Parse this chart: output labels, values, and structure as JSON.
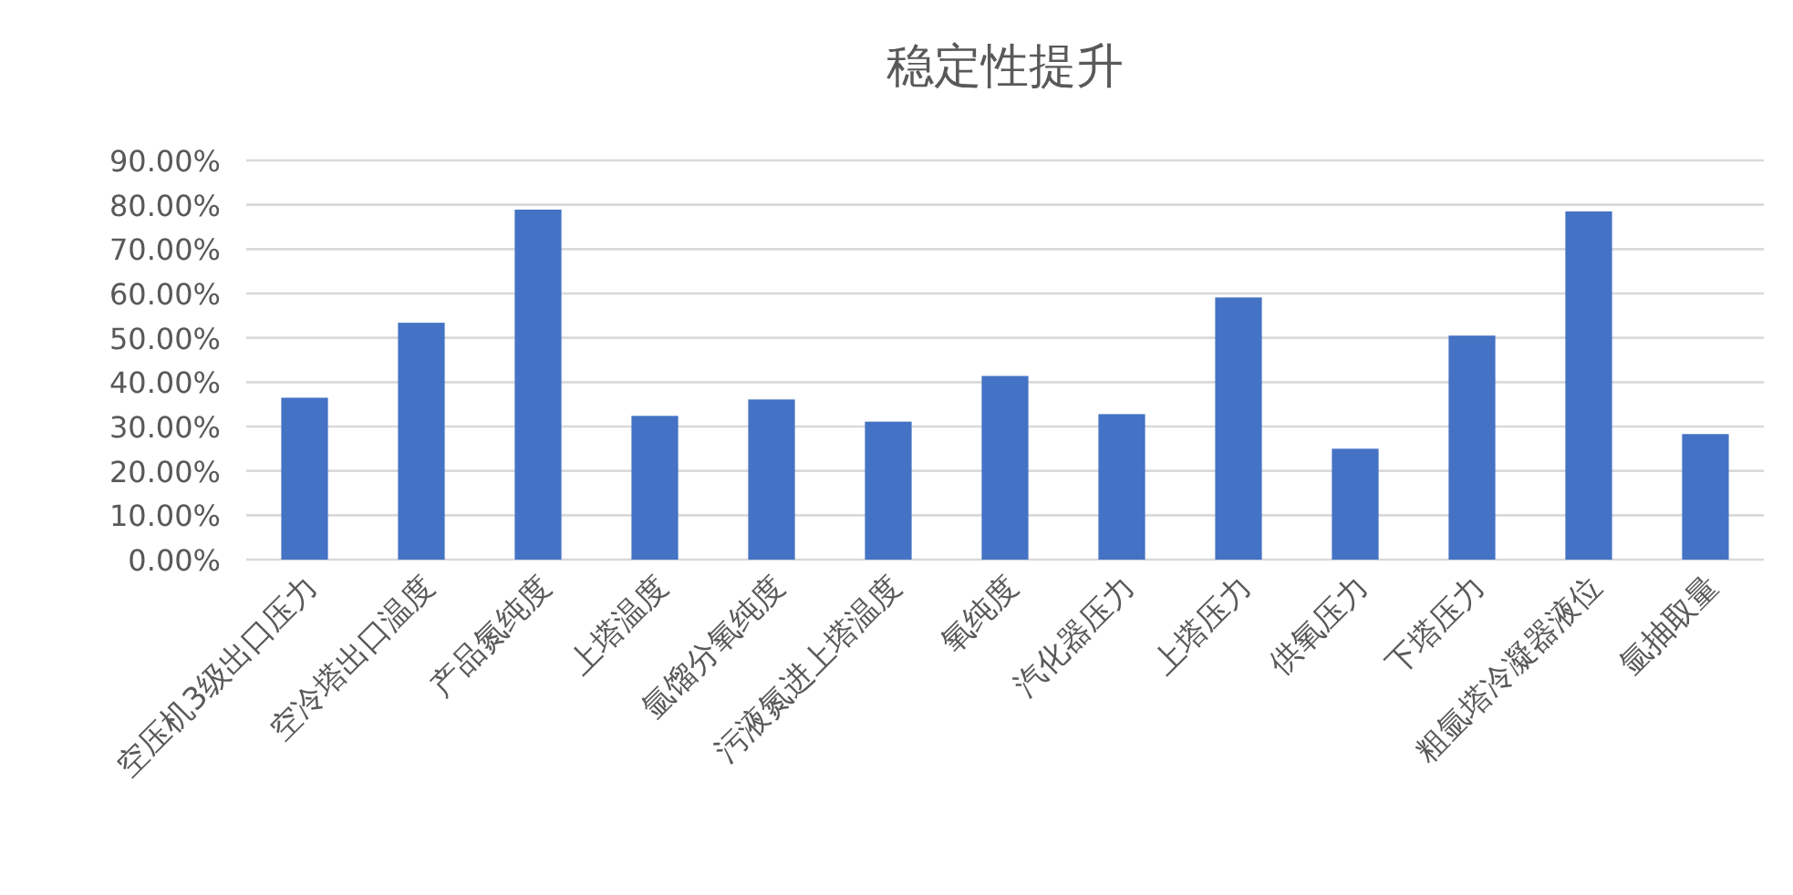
{
  "chart_data": {
    "type": "bar",
    "title": "稳定性提升",
    "categories": [
      "空压机3级出口压力",
      "空冷塔出口温度",
      "产品氮纯度",
      "上塔温度",
      "氩馏分氧纯度",
      "污液氮进上塔温度",
      "氧纯度",
      "汽化器压力",
      "上塔压力",
      "供氧压力",
      "下塔压力",
      "粗氩塔冷凝器液位",
      "氩抽取量"
    ],
    "values": [
      36.5,
      53.4,
      78.9,
      32.4,
      36.1,
      31.1,
      41.4,
      32.8,
      59.1,
      25.0,
      50.5,
      78.5,
      28.3
    ],
    "color": "#4472c4",
    "ylim": [
      0,
      90
    ],
    "yticks": [
      {
        "value": 0,
        "label": "0.00%"
      },
      {
        "value": 10,
        "label": "10.00%"
      },
      {
        "value": 20,
        "label": "20.00%"
      },
      {
        "value": 30,
        "label": "30.00%"
      },
      {
        "value": 40,
        "label": "40.00%"
      },
      {
        "value": 50,
        "label": "50.00%"
      },
      {
        "value": 60,
        "label": "60.00%"
      },
      {
        "value": 70,
        "label": "70.00%"
      },
      {
        "value": 80,
        "label": "80.00%"
      },
      {
        "value": 90,
        "label": "90.00%"
      }
    ],
    "grid": "y"
  }
}
